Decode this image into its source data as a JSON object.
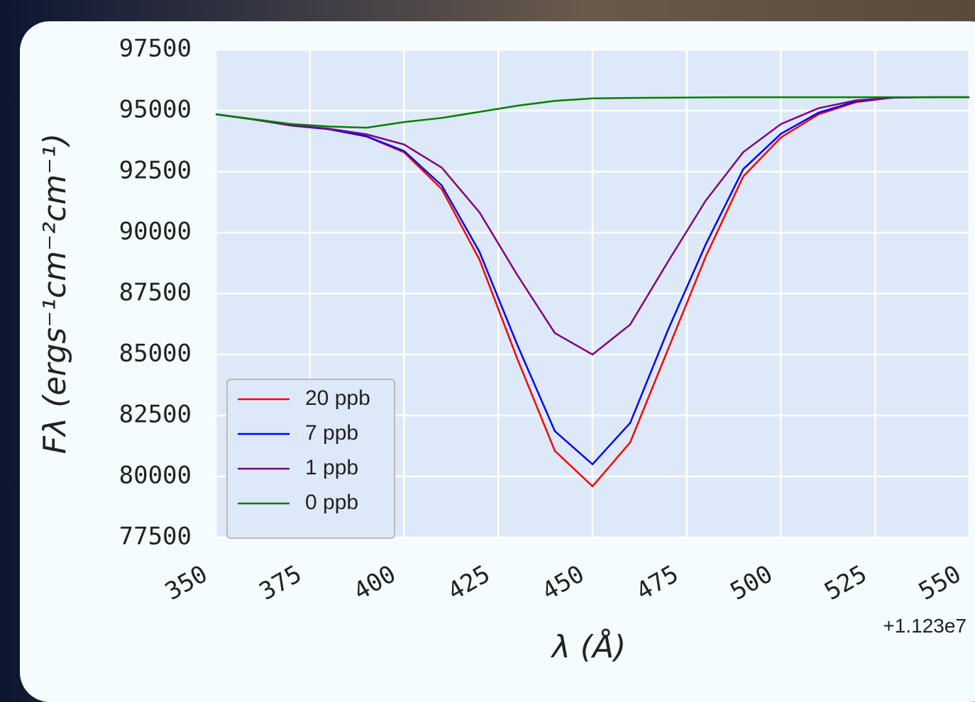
{
  "chart_data": {
    "type": "line",
    "xlabel": "λ (Å)",
    "ylabel": "Fλ (ergs⁻¹cm⁻²cm⁻¹)",
    "x_offset_label": "+1.123e7",
    "x": [
      350,
      360,
      370,
      380,
      390,
      400,
      410,
      420,
      430,
      440,
      450,
      460,
      470,
      480,
      490,
      500,
      510,
      520,
      530,
      540,
      550
    ],
    "series": [
      {
        "name": "20 ppb",
        "color": "#ff0000",
        "values": [
          94850,
          94640,
          94390,
          94240,
          93940,
          93290,
          91780,
          88890,
          84840,
          81050,
          79600,
          81400,
          85200,
          89000,
          92300,
          93900,
          94850,
          95350,
          95540,
          95550,
          95550
        ]
      },
      {
        "name": "7 ppb",
        "color": "#0000ff",
        "values": [
          94850,
          94640,
          94390,
          94240,
          93950,
          93340,
          91930,
          89210,
          85410,
          81860,
          80500,
          82200,
          86000,
          89500,
          92600,
          94050,
          94920,
          95380,
          95540,
          95550,
          95550
        ]
      },
      {
        "name": "1 ppb",
        "color": "#800080",
        "values": [
          94850,
          94640,
          94400,
          94260,
          94030,
          93610,
          92660,
          90830,
          88270,
          85880,
          85000,
          86230,
          88800,
          91300,
          93300,
          94450,
          95100,
          95420,
          95530,
          95550,
          95550
        ]
      },
      {
        "name": "0 ppb",
        "color": "#008000",
        "values": [
          94850,
          94650,
          94450,
          94350,
          94300,
          94530,
          94700,
          94950,
          95200,
          95400,
          95500,
          95520,
          95530,
          95540,
          95550,
          95550,
          95550,
          95550,
          95550,
          95550,
          95550
        ]
      }
    ],
    "xlim": [
      350,
      550
    ],
    "ylim": [
      77500,
      97500
    ],
    "xticks": [
      350,
      375,
      400,
      425,
      450,
      475,
      500,
      525,
      550
    ],
    "yticks": [
      77500,
      80000,
      82500,
      85000,
      87500,
      90000,
      92500,
      95000,
      97500
    ],
    "grid": true,
    "legend": "lower left"
  }
}
